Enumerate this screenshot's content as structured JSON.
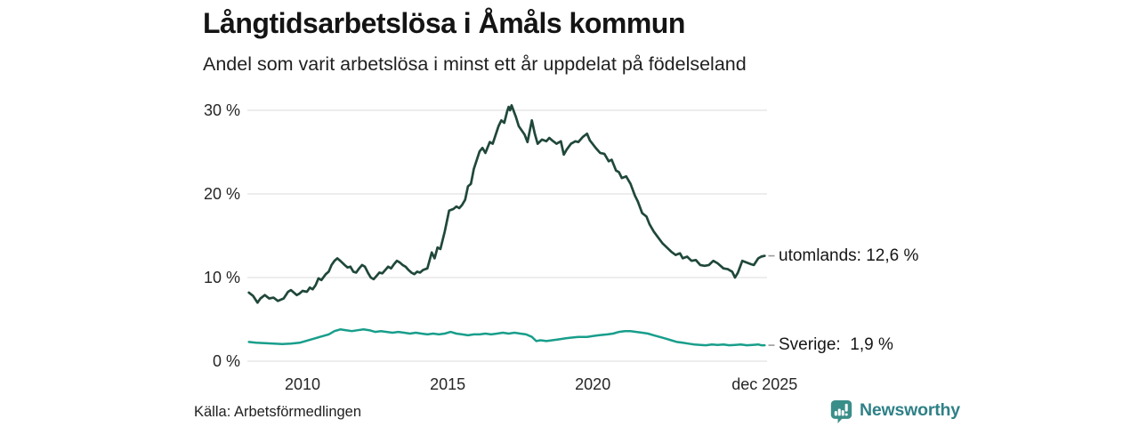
{
  "title": "Långtidsarbetslösa i Åmåls kommun",
  "subtitle": "Andel som varit arbetslösa i minst ett år uppdelat på födelseland",
  "source": "Källa: Arbetsförmedlingen",
  "branding": {
    "name": "Newsworthy",
    "wordmark_color": "#2f8187",
    "icon": "bar-chart-speech-bubble-icon",
    "icon_color": "#3a8e89"
  },
  "chart_data": {
    "type": "line",
    "title": "Långtidsarbetslösa i Åmåls kommun",
    "subtitle": "Andel som varit arbetslösa i minst ett år uppdelat på födelseland",
    "grid": true,
    "grid_color": "#e2e2e2",
    "legend_position": "right-end-labels",
    "end_label_dash_color": "#9b9b9b",
    "x_axis": {
      "tick_labels": [
        "2010",
        "2015",
        "2020",
        "dec 2025"
      ],
      "tick_years": [
        2010,
        2015,
        2020,
        2025.92
      ],
      "range": [
        2008.15,
        2025.92
      ]
    },
    "y_axis": {
      "tick_labels": [
        "0 %",
        "10 %",
        "20 %",
        "30 %"
      ],
      "tick_values": [
        0,
        10,
        20,
        30
      ],
      "range": [
        0,
        31
      ],
      "unit": "%"
    },
    "series": [
      {
        "name": "utomlands",
        "end_label": "utomlands: 12,6 %",
        "last_value": 12.6,
        "color": "#20483a",
        "width": 2.7,
        "points": [
          [
            2008.15,
            8.2
          ],
          [
            2008.3,
            7.8
          ],
          [
            2008.45,
            7.0
          ],
          [
            2008.55,
            7.5
          ],
          [
            2008.7,
            7.9
          ],
          [
            2008.85,
            7.5
          ],
          [
            2009.0,
            7.6
          ],
          [
            2009.15,
            7.2
          ],
          [
            2009.35,
            7.5
          ],
          [
            2009.5,
            8.3
          ],
          [
            2009.6,
            8.5
          ],
          [
            2009.7,
            8.2
          ],
          [
            2009.8,
            7.9
          ],
          [
            2009.9,
            8.1
          ],
          [
            2010.0,
            8.4
          ],
          [
            2010.15,
            8.3
          ],
          [
            2010.25,
            8.8
          ],
          [
            2010.35,
            8.6
          ],
          [
            2010.45,
            9.1
          ],
          [
            2010.55,
            9.9
          ],
          [
            2010.65,
            9.7
          ],
          [
            2010.8,
            10.4
          ],
          [
            2010.9,
            10.7
          ],
          [
            2011.0,
            11.5
          ],
          [
            2011.1,
            12.0
          ],
          [
            2011.2,
            12.3
          ],
          [
            2011.3,
            12.0
          ],
          [
            2011.45,
            11.5
          ],
          [
            2011.55,
            11.2
          ],
          [
            2011.65,
            11.3
          ],
          [
            2011.75,
            10.7
          ],
          [
            2011.85,
            10.6
          ],
          [
            2011.95,
            11.1
          ],
          [
            2012.05,
            11.5
          ],
          [
            2012.15,
            11.3
          ],
          [
            2012.25,
            10.6
          ],
          [
            2012.35,
            10.0
          ],
          [
            2012.45,
            9.8
          ],
          [
            2012.55,
            10.2
          ],
          [
            2012.65,
            10.6
          ],
          [
            2012.75,
            10.5
          ],
          [
            2012.85,
            10.9
          ],
          [
            2012.95,
            11.3
          ],
          [
            2013.05,
            11.1
          ],
          [
            2013.15,
            11.6
          ],
          [
            2013.25,
            12.0
          ],
          [
            2013.35,
            11.8
          ],
          [
            2013.45,
            11.5
          ],
          [
            2013.55,
            11.3
          ],
          [
            2013.65,
            10.9
          ],
          [
            2013.75,
            10.6
          ],
          [
            2013.85,
            10.4
          ],
          [
            2013.95,
            10.7
          ],
          [
            2014.05,
            10.6
          ],
          [
            2014.15,
            10.9
          ],
          [
            2014.3,
            11.1
          ],
          [
            2014.45,
            13.0
          ],
          [
            2014.55,
            12.3
          ],
          [
            2014.65,
            13.6
          ],
          [
            2014.75,
            13.4
          ],
          [
            2014.9,
            15.5
          ],
          [
            2015.05,
            18.0
          ],
          [
            2015.2,
            18.2
          ],
          [
            2015.3,
            18.5
          ],
          [
            2015.4,
            18.3
          ],
          [
            2015.5,
            18.7
          ],
          [
            2015.6,
            19.3
          ],
          [
            2015.7,
            20.9
          ],
          [
            2015.8,
            21.2
          ],
          [
            2015.9,
            23.0
          ],
          [
            2016.1,
            25.1
          ],
          [
            2016.2,
            25.5
          ],
          [
            2016.3,
            24.9
          ],
          [
            2016.45,
            26.2
          ],
          [
            2016.55,
            26.0
          ],
          [
            2016.75,
            28.1
          ],
          [
            2016.85,
            28.8
          ],
          [
            2016.95,
            28.5
          ],
          [
            2017.05,
            29.9
          ],
          [
            2017.1,
            30.4
          ],
          [
            2017.15,
            30.0
          ],
          [
            2017.2,
            30.6
          ],
          [
            2017.35,
            29.2
          ],
          [
            2017.45,
            28.1
          ],
          [
            2017.55,
            27.6
          ],
          [
            2017.65,
            27.1
          ],
          [
            2017.75,
            26.2
          ],
          [
            2017.9,
            28.8
          ],
          [
            2018.0,
            27.2
          ],
          [
            2018.1,
            26.0
          ],
          [
            2018.25,
            26.5
          ],
          [
            2018.4,
            26.3
          ],
          [
            2018.5,
            26.7
          ],
          [
            2018.6,
            26.4
          ],
          [
            2018.75,
            26.0
          ],
          [
            2018.9,
            26.3
          ],
          [
            2019.0,
            24.7
          ],
          [
            2019.1,
            25.3
          ],
          [
            2019.25,
            26.0
          ],
          [
            2019.4,
            26.3
          ],
          [
            2019.5,
            26.2
          ],
          [
            2019.65,
            26.8
          ],
          [
            2019.8,
            27.2
          ],
          [
            2019.9,
            26.4
          ],
          [
            2020.1,
            25.5
          ],
          [
            2020.25,
            24.9
          ],
          [
            2020.4,
            24.8
          ],
          [
            2020.55,
            23.9
          ],
          [
            2020.65,
            24.1
          ],
          [
            2020.8,
            22.8
          ],
          [
            2020.9,
            22.6
          ],
          [
            2021.0,
            21.9
          ],
          [
            2021.15,
            22.1
          ],
          [
            2021.3,
            21.2
          ],
          [
            2021.45,
            19.8
          ],
          [
            2021.55,
            19.1
          ],
          [
            2021.7,
            17.7
          ],
          [
            2021.85,
            17.3
          ],
          [
            2021.95,
            16.4
          ],
          [
            2022.1,
            15.5
          ],
          [
            2022.25,
            14.8
          ],
          [
            2022.4,
            14.1
          ],
          [
            2022.55,
            13.6
          ],
          [
            2022.7,
            13.1
          ],
          [
            2022.85,
            12.7
          ],
          [
            2023.0,
            12.9
          ],
          [
            2023.1,
            12.3
          ],
          [
            2023.25,
            12.5
          ],
          [
            2023.4,
            12.0
          ],
          [
            2023.55,
            12.1
          ],
          [
            2023.7,
            11.5
          ],
          [
            2023.85,
            11.4
          ],
          [
            2024.0,
            11.5
          ],
          [
            2024.15,
            12.0
          ],
          [
            2024.3,
            11.7
          ],
          [
            2024.5,
            11.1
          ],
          [
            2024.65,
            11.0
          ],
          [
            2024.8,
            10.7
          ],
          [
            2024.9,
            10.0
          ],
          [
            2025.0,
            10.6
          ],
          [
            2025.15,
            12.0
          ],
          [
            2025.3,
            11.8
          ],
          [
            2025.45,
            11.6
          ],
          [
            2025.55,
            11.5
          ],
          [
            2025.7,
            12.3
          ],
          [
            2025.8,
            12.5
          ],
          [
            2025.92,
            12.6
          ]
        ]
      },
      {
        "name": "Sverige",
        "end_label": "Sverige:  1,9 %",
        "last_value": 1.9,
        "color": "#189e8b",
        "width": 2.5,
        "points": [
          [
            2008.15,
            2.3
          ],
          [
            2008.4,
            2.2
          ],
          [
            2008.7,
            2.15
          ],
          [
            2009.0,
            2.1
          ],
          [
            2009.3,
            2.05
          ],
          [
            2009.6,
            2.1
          ],
          [
            2009.9,
            2.2
          ],
          [
            2010.1,
            2.4
          ],
          [
            2010.3,
            2.6
          ],
          [
            2010.6,
            2.9
          ],
          [
            2010.9,
            3.2
          ],
          [
            2011.1,
            3.6
          ],
          [
            2011.3,
            3.8
          ],
          [
            2011.5,
            3.7
          ],
          [
            2011.7,
            3.6
          ],
          [
            2011.9,
            3.7
          ],
          [
            2012.1,
            3.8
          ],
          [
            2012.3,
            3.7
          ],
          [
            2012.5,
            3.5
          ],
          [
            2012.7,
            3.6
          ],
          [
            2012.9,
            3.5
          ],
          [
            2013.1,
            3.4
          ],
          [
            2013.3,
            3.5
          ],
          [
            2013.5,
            3.4
          ],
          [
            2013.7,
            3.3
          ],
          [
            2013.9,
            3.4
          ],
          [
            2014.1,
            3.3
          ],
          [
            2014.3,
            3.2
          ],
          [
            2014.5,
            3.3
          ],
          [
            2014.7,
            3.2
          ],
          [
            2014.9,
            3.3
          ],
          [
            2015.1,
            3.5
          ],
          [
            2015.3,
            3.3
          ],
          [
            2015.5,
            3.2
          ],
          [
            2015.7,
            3.1
          ],
          [
            2015.9,
            3.2
          ],
          [
            2016.1,
            3.2
          ],
          [
            2016.3,
            3.3
          ],
          [
            2016.5,
            3.2
          ],
          [
            2016.7,
            3.3
          ],
          [
            2016.9,
            3.4
          ],
          [
            2017.1,
            3.3
          ],
          [
            2017.3,
            3.4
          ],
          [
            2017.5,
            3.3
          ],
          [
            2017.7,
            3.2
          ],
          [
            2017.9,
            2.9
          ],
          [
            2018.05,
            2.4
          ],
          [
            2018.2,
            2.5
          ],
          [
            2018.4,
            2.4
          ],
          [
            2018.6,
            2.5
          ],
          [
            2018.8,
            2.6
          ],
          [
            2019.0,
            2.7
          ],
          [
            2019.2,
            2.8
          ],
          [
            2019.5,
            2.9
          ],
          [
            2019.8,
            2.9
          ],
          [
            2020.0,
            3.0
          ],
          [
            2020.2,
            3.1
          ],
          [
            2020.5,
            3.2
          ],
          [
            2020.7,
            3.3
          ],
          [
            2020.9,
            3.5
          ],
          [
            2021.1,
            3.6
          ],
          [
            2021.3,
            3.6
          ],
          [
            2021.5,
            3.5
          ],
          [
            2021.7,
            3.4
          ],
          [
            2021.9,
            3.3
          ],
          [
            2022.1,
            3.1
          ],
          [
            2022.3,
            2.9
          ],
          [
            2022.5,
            2.7
          ],
          [
            2022.7,
            2.5
          ],
          [
            2022.9,
            2.3
          ],
          [
            2023.1,
            2.2
          ],
          [
            2023.3,
            2.1
          ],
          [
            2023.5,
            2.0
          ],
          [
            2023.7,
            1.95
          ],
          [
            2023.9,
            1.9
          ],
          [
            2024.1,
            2.0
          ],
          [
            2024.3,
            1.95
          ],
          [
            2024.5,
            2.0
          ],
          [
            2024.7,
            1.9
          ],
          [
            2024.9,
            1.95
          ],
          [
            2025.1,
            2.0
          ],
          [
            2025.3,
            1.9
          ],
          [
            2025.5,
            1.95
          ],
          [
            2025.7,
            2.0
          ],
          [
            2025.8,
            1.9
          ],
          [
            2025.92,
            1.9
          ]
        ]
      }
    ]
  }
}
